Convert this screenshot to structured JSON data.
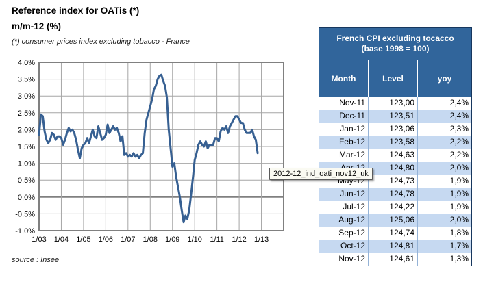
{
  "header": {
    "title": "Reference index for OATis (*)",
    "subtitle": "m/m-12 (%)",
    "footnote": "(*) consumer prices index excluding tobacco - France",
    "source": "source : Insee"
  },
  "tooltip": {
    "text": "2012-12_ind_oati_nov12_uk"
  },
  "table": {
    "title_line1": "French CPI excluding tocacco",
    "title_line2": "(base 1998 = 100)",
    "columns": {
      "month": "Month",
      "level": "Level",
      "yoy": "yoy"
    },
    "rows": [
      {
        "month": "Nov-11",
        "level": "123,00",
        "yoy": "2,4%"
      },
      {
        "month": "Dec-11",
        "level": "123,51",
        "yoy": "2,4%"
      },
      {
        "month": "Jan-12",
        "level": "123,06",
        "yoy": "2,3%"
      },
      {
        "month": "Feb-12",
        "level": "123,58",
        "yoy": "2,2%"
      },
      {
        "month": "Mar-12",
        "level": "124,63",
        "yoy": "2,2%"
      },
      {
        "month": "Apr-12",
        "level": "124,80",
        "yoy": "2,0%"
      },
      {
        "month": "May-12",
        "level": "124,73",
        "yoy": "1,9%"
      },
      {
        "month": "Jun-12",
        "level": "124,78",
        "yoy": "1,9%"
      },
      {
        "month": "Jul-12",
        "level": "124,22",
        "yoy": "1,9%"
      },
      {
        "month": "Aug-12",
        "level": "125,06",
        "yoy": "2,0%"
      },
      {
        "month": "Sep-12",
        "level": "124,74",
        "yoy": "1,8%"
      },
      {
        "month": "Oct-12",
        "level": "124,81",
        "yoy": "1,7%"
      },
      {
        "month": "Nov-12",
        "level": "124,61",
        "yoy": "1,3%"
      }
    ],
    "colors": {
      "header_bg": "#31659B",
      "row_alt": "#C6D9F1",
      "cell_border": "#95B3D7",
      "outer_border": "#17375E"
    }
  },
  "chart_data": {
    "type": "line",
    "title": "Reference index for OATis (*)",
    "ylabel": "m/m-12 (%)",
    "x_start": "2003-01",
    "x_tick_labels": [
      "1/03",
      "1/04",
      "1/05",
      "1/06",
      "1/07",
      "1/08",
      "1/09",
      "1/10",
      "1/11",
      "1/12",
      "1/13"
    ],
    "y_tick_labels": [
      "4,0%",
      "3,5%",
      "3,0%",
      "2,5%",
      "2,0%",
      "1,5%",
      "1,0%",
      "0,5%",
      "0,0%",
      "-0,5%",
      "-1,0%"
    ],
    "ylim": [
      -1.0,
      4.0
    ],
    "y_step": 0.5,
    "x_domain_months": 132,
    "grid": true,
    "legend": "none",
    "series": [
      {
        "name": "French CPI excluding tobacco, year-on-year %",
        "monthly_values": [
          1.85,
          2.45,
          2.4,
          1.95,
          1.7,
          1.6,
          1.7,
          1.9,
          1.85,
          1.7,
          1.8,
          1.8,
          1.75,
          1.55,
          1.7,
          1.9,
          2.05,
          1.95,
          2.0,
          1.9,
          1.7,
          1.4,
          1.15,
          1.45,
          1.55,
          1.6,
          1.75,
          1.6,
          1.8,
          2.0,
          1.8,
          1.75,
          2.1,
          1.9,
          1.7,
          1.75,
          1.85,
          2.15,
          1.9,
          2.0,
          2.1,
          2.0,
          2.05,
          1.9,
          1.65,
          1.8,
          1.25,
          1.3,
          1.2,
          1.25,
          1.2,
          1.3,
          1.2,
          1.25,
          1.15,
          1.25,
          1.3,
          1.9,
          2.3,
          2.5,
          2.7,
          2.9,
          3.2,
          3.3,
          3.5,
          3.6,
          3.63,
          3.45,
          3.3,
          2.95,
          2.0,
          1.45,
          0.9,
          1.0,
          0.6,
          0.3,
          0.0,
          -0.4,
          -0.75,
          -0.55,
          -0.65,
          -0.4,
          0.05,
          0.55,
          1.1,
          1.3,
          1.55,
          1.65,
          1.55,
          1.5,
          1.65,
          1.45,
          1.55,
          1.55,
          1.55,
          1.75,
          1.75,
          1.65,
          1.95,
          2.05,
          2.0,
          2.1,
          1.9,
          2.1,
          2.2,
          2.3,
          2.4,
          2.4,
          2.3,
          2.2,
          2.2,
          2.0,
          1.9,
          1.9,
          1.9,
          2.0,
          1.8,
          1.7,
          1.3
        ]
      }
    ],
    "colors": {
      "line": "#376092",
      "grid": "#A6A6A6",
      "plot_border": "#808080",
      "zero_line": "#808080"
    }
  }
}
